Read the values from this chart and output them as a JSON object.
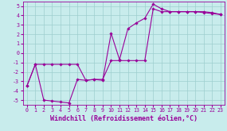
{
  "xlabel": "Windchill (Refroidissement éolien,°C)",
  "bg_color": "#c8ecec",
  "line_color": "#990099",
  "grid_color": "#9ecece",
  "xlim": [
    -0.5,
    23.5
  ],
  "ylim": [
    -5.5,
    5.5
  ],
  "yticks": [
    -5,
    -4,
    -3,
    -2,
    -1,
    0,
    1,
    2,
    3,
    4,
    5
  ],
  "xticks": [
    0,
    1,
    2,
    3,
    4,
    5,
    6,
    7,
    8,
    9,
    10,
    11,
    12,
    13,
    14,
    15,
    16,
    17,
    18,
    19,
    20,
    21,
    22,
    23
  ],
  "line1_x": [
    0,
    1,
    2,
    3,
    4,
    5,
    6,
    7,
    8,
    9,
    10,
    11,
    12,
    13,
    14,
    15,
    16,
    17,
    18,
    19,
    20,
    21,
    22,
    23
  ],
  "line1_y": [
    -3.5,
    -1.2,
    -5.0,
    -5.1,
    -5.2,
    -5.3,
    -2.8,
    -2.9,
    -2.8,
    -2.9,
    2.1,
    -0.7,
    2.6,
    3.2,
    3.7,
    5.2,
    4.7,
    4.4,
    4.4,
    4.4,
    4.4,
    4.4,
    4.3,
    4.1
  ],
  "line2_x": [
    0,
    1,
    2,
    3,
    4,
    5,
    6,
    7,
    8,
    9,
    10,
    11,
    12,
    13,
    14,
    15,
    16,
    17,
    18,
    19,
    20,
    21,
    22,
    23
  ],
  "line2_y": [
    -3.5,
    -1.2,
    -1.2,
    -1.2,
    -1.2,
    -1.2,
    -1.2,
    -2.9,
    -2.8,
    -2.8,
    -0.8,
    -0.8,
    -0.8,
    -0.8,
    -0.8,
    4.7,
    4.4,
    4.4,
    4.4,
    4.4,
    4.4,
    4.3,
    4.2,
    4.1
  ],
  "marker": "D",
  "marker_size": 1.8,
  "line_width": 0.8,
  "tick_fontsize": 4.8,
  "xlabel_fontsize": 6.0
}
